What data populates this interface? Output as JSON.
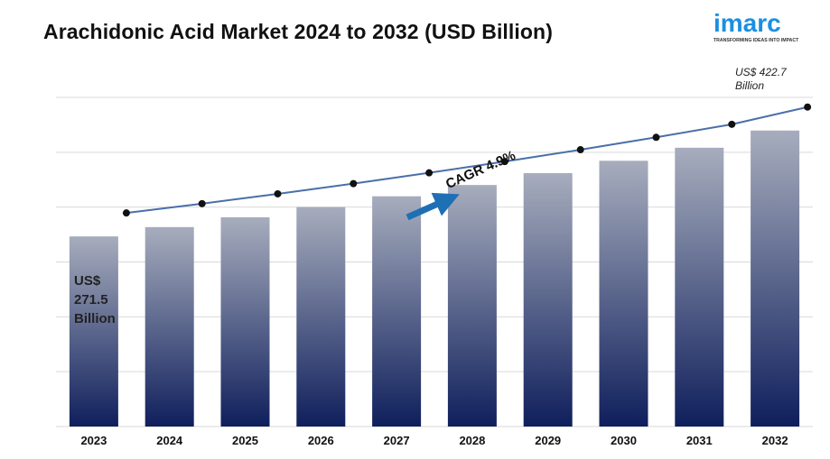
{
  "title": "Arachidonic Acid Market 2024 to 2032 (USD Billion)",
  "logo": {
    "name": "imarc",
    "tagline": "TRANSFORMING IDEAS INTO IMPACT"
  },
  "colors": {
    "bar_top": "#a7adbd",
    "bar_bottom": "#0f1f5c",
    "line": "#4a6fa8",
    "arrow": "#1f6fb4",
    "grid": "#d9d9d9"
  },
  "annotations": {
    "start_value": "US$ 271.5 Billion",
    "start_lines": [
      "US$",
      "271.5",
      "Billion"
    ],
    "end_value": "US$ 422.7 Billion",
    "end_lines": [
      "US$ 422.7",
      "Billion"
    ],
    "cagr": "CAGR 4.9%"
  },
  "chart_data": {
    "type": "bar",
    "title": "Arachidonic Acid Market 2024 to 2032 (USD Billion)",
    "categories": [
      "2023",
      "2024",
      "2025",
      "2026",
      "2027",
      "2028",
      "2029",
      "2030",
      "2031",
      "2032"
    ],
    "series": [
      {
        "type": "bar",
        "values": [
          271.5,
          284.8,
          298.8,
          313.4,
          328.8,
          344.9,
          361.8,
          379.5,
          398.1,
          422.7
        ]
      },
      {
        "type": "line",
        "values": [
          271.5,
          284.8,
          298.8,
          313.4,
          328.8,
          344.9,
          361.8,
          379.5,
          398.1,
          422.7
        ]
      }
    ],
    "ylim": [
      0,
      470
    ],
    "grid": true,
    "y_tick_labels_shown": false
  }
}
